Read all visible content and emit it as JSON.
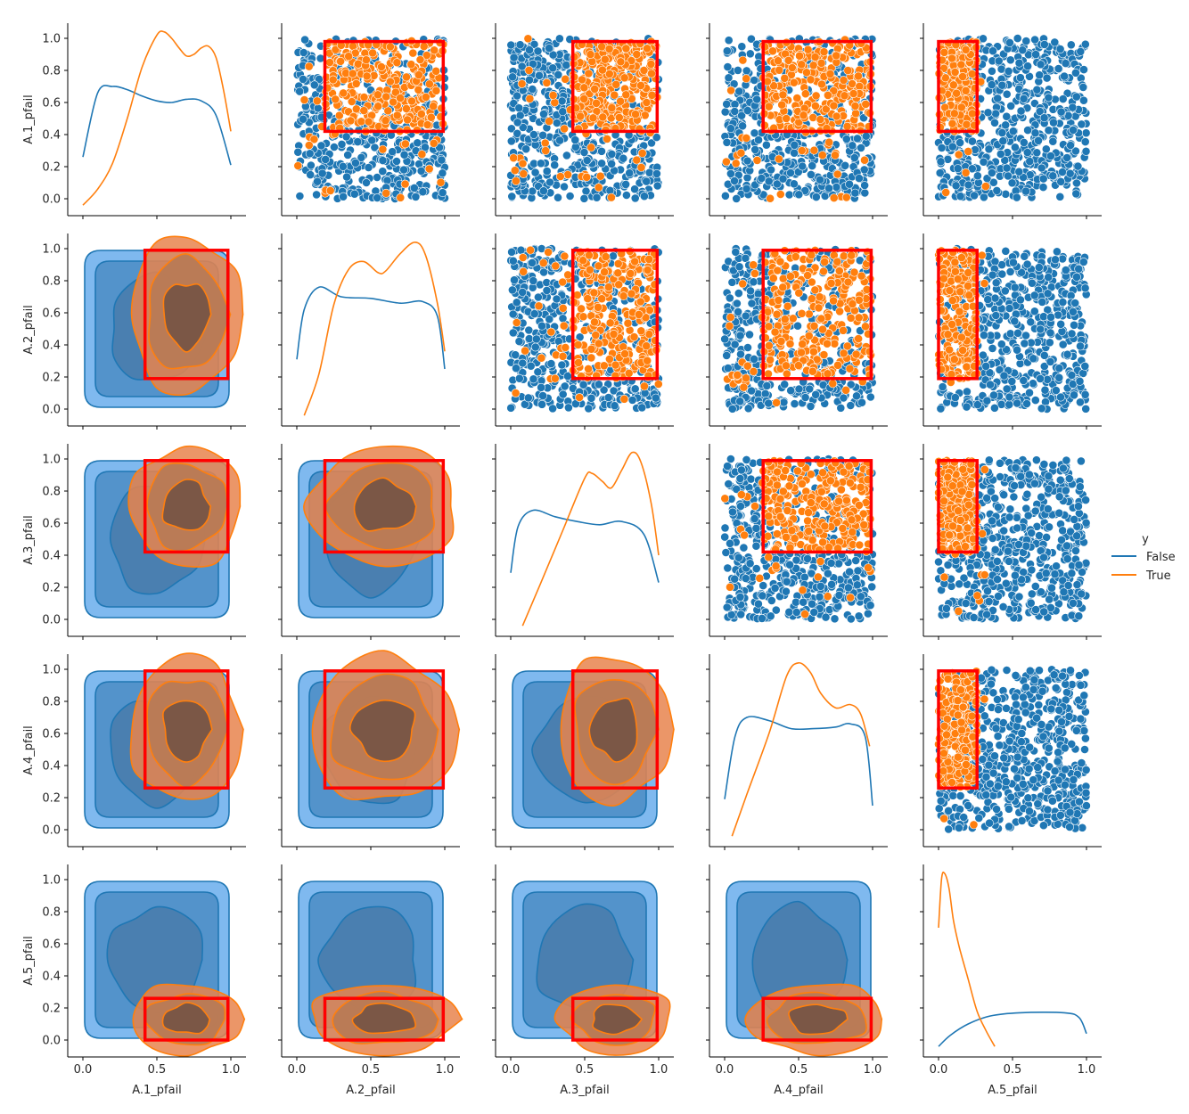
{
  "chart_data": {
    "type": "pairplot",
    "variables": [
      "A.1_pfail",
      "A.2_pfail",
      "A.3_pfail",
      "A.4_pfail",
      "A.5_pfail"
    ],
    "axis_range": [
      0.0,
      1.0
    ],
    "ticks": [
      "0.0",
      "0.2",
      "0.4",
      "0.6",
      "0.8",
      "1.0"
    ],
    "x_ticks": [
      "0.0",
      "0.5",
      "1.0"
    ],
    "diagonal": "kde",
    "upper": "scatter",
    "lower": "kde",
    "legend": {
      "title": "y",
      "placement": "right",
      "entries": [
        {
          "label": "False",
          "color": "#1f77b4"
        },
        {
          "label": "True",
          "color": "#ff7f0e"
        }
      ]
    },
    "box_color": "#ff0000",
    "box_limits": [
      [
        0.42,
        0.98
      ],
      [
        0.19,
        0.99
      ],
      [
        0.42,
        0.99
      ],
      [
        0.26,
        0.99
      ],
      [
        0.0,
        0.26
      ]
    ],
    "diagonal_kde": [
      {
        "False": [
          [
            0.0,
            0.26
          ],
          [
            0.1,
            0.66
          ],
          [
            0.2,
            0.7
          ],
          [
            0.3,
            0.68
          ],
          [
            0.4,
            0.64
          ],
          [
            0.5,
            0.61
          ],
          [
            0.6,
            0.6
          ],
          [
            0.7,
            0.62
          ],
          [
            0.8,
            0.61
          ],
          [
            0.9,
            0.52
          ],
          [
            1.0,
            0.21
          ]
        ],
        "True": [
          [
            0.0,
            -0.04
          ],
          [
            0.1,
            0.06
          ],
          [
            0.2,
            0.22
          ],
          [
            0.3,
            0.5
          ],
          [
            0.4,
            0.82
          ],
          [
            0.5,
            1.02
          ],
          [
            0.55,
            1.04
          ],
          [
            0.6,
            1.0
          ],
          [
            0.65,
            0.94
          ],
          [
            0.7,
            0.89
          ],
          [
            0.75,
            0.9
          ],
          [
            0.8,
            0.94
          ],
          [
            0.85,
            0.95
          ],
          [
            0.9,
            0.88
          ],
          [
            0.95,
            0.68
          ],
          [
            1.0,
            0.42
          ]
        ]
      },
      {
        "False": [
          [
            0.0,
            0.31
          ],
          [
            0.05,
            0.62
          ],
          [
            0.15,
            0.76
          ],
          [
            0.3,
            0.7
          ],
          [
            0.5,
            0.69
          ],
          [
            0.7,
            0.66
          ],
          [
            0.85,
            0.67
          ],
          [
            0.95,
            0.58
          ],
          [
            1.0,
            0.25
          ]
        ],
        "True": [
          [
            0.05,
            -0.04
          ],
          [
            0.15,
            0.22
          ],
          [
            0.25,
            0.65
          ],
          [
            0.35,
            0.87
          ],
          [
            0.45,
            0.92
          ],
          [
            0.55,
            0.85
          ],
          [
            0.6,
            0.86
          ],
          [
            0.7,
            0.97
          ],
          [
            0.8,
            1.04
          ],
          [
            0.87,
            0.96
          ],
          [
            0.95,
            0.66
          ],
          [
            1.0,
            0.36
          ]
        ]
      },
      {
        "False": [
          [
            0.0,
            0.29
          ],
          [
            0.05,
            0.58
          ],
          [
            0.15,
            0.68
          ],
          [
            0.3,
            0.64
          ],
          [
            0.45,
            0.61
          ],
          [
            0.6,
            0.59
          ],
          [
            0.75,
            0.61
          ],
          [
            0.9,
            0.53
          ],
          [
            1.0,
            0.23
          ]
        ],
        "True": [
          [
            0.08,
            -0.04
          ],
          [
            0.2,
            0.22
          ],
          [
            0.35,
            0.55
          ],
          [
            0.5,
            0.88
          ],
          [
            0.55,
            0.91
          ],
          [
            0.62,
            0.86
          ],
          [
            0.68,
            0.82
          ],
          [
            0.75,
            0.93
          ],
          [
            0.82,
            1.04
          ],
          [
            0.88,
            0.98
          ],
          [
            0.95,
            0.72
          ],
          [
            1.0,
            0.4
          ]
        ]
      },
      {
        "False": [
          [
            0.0,
            0.19
          ],
          [
            0.07,
            0.58
          ],
          [
            0.15,
            0.7
          ],
          [
            0.3,
            0.68
          ],
          [
            0.45,
            0.63
          ],
          [
            0.6,
            0.63
          ],
          [
            0.75,
            0.64
          ],
          [
            0.85,
            0.66
          ],
          [
            0.95,
            0.58
          ],
          [
            1.0,
            0.15
          ]
        ],
        "True": [
          [
            0.05,
            -0.04
          ],
          [
            0.15,
            0.22
          ],
          [
            0.3,
            0.6
          ],
          [
            0.42,
            0.96
          ],
          [
            0.5,
            1.04
          ],
          [
            0.58,
            0.98
          ],
          [
            0.65,
            0.85
          ],
          [
            0.75,
            0.76
          ],
          [
            0.85,
            0.78
          ],
          [
            0.92,
            0.72
          ],
          [
            0.98,
            0.52
          ]
        ]
      },
      {
        "False": [
          [
            0.0,
            -0.04
          ],
          [
            0.08,
            0.03
          ],
          [
            0.2,
            0.1
          ],
          [
            0.35,
            0.15
          ],
          [
            0.55,
            0.17
          ],
          [
            0.85,
            0.17
          ],
          [
            0.95,
            0.14
          ],
          [
            1.0,
            0.04
          ]
        ],
        "True": [
          [
            0.0,
            0.7
          ],
          [
            0.02,
            1.0
          ],
          [
            0.04,
            1.04
          ],
          [
            0.07,
            0.95
          ],
          [
            0.1,
            0.75
          ],
          [
            0.14,
            0.58
          ],
          [
            0.2,
            0.38
          ],
          [
            0.26,
            0.18
          ],
          [
            0.32,
            0.06
          ],
          [
            0.38,
            -0.04
          ]
        ]
      }
    ]
  }
}
